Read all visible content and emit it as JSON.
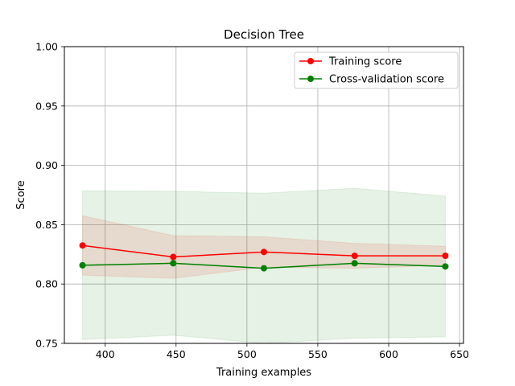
{
  "chart_data": {
    "type": "line",
    "title": "Decision Tree",
    "xlabel": "Training examples",
    "ylabel": "Score",
    "xlim": [
      371.2,
      652.8
    ],
    "ylim": [
      0.75,
      1.0
    ],
    "xticks": [
      400,
      450,
      500,
      550,
      600,
      650
    ],
    "xtick_labels": [
      "400",
      "450",
      "500",
      "550",
      "600",
      "650"
    ],
    "yticks": [
      0.75,
      0.8,
      0.85,
      0.9,
      0.95,
      1.0
    ],
    "ytick_labels": [
      "0.75",
      "0.80",
      "0.85",
      "0.90",
      "0.95",
      "1.00"
    ],
    "grid": true,
    "legend_position": "top-right",
    "x": [
      384,
      448,
      512,
      576,
      640
    ],
    "series": [
      {
        "name": "Training score",
        "color": "#ff0000",
        "marker": "circle",
        "values": [
          0.8325,
          0.8228,
          0.827,
          0.8238,
          0.8238
        ],
        "band_upper": [
          0.8575,
          0.8408,
          0.8398,
          0.8343,
          0.8318
        ],
        "band_lower": [
          0.8075,
          0.8048,
          0.8142,
          0.8133,
          0.8158
        ],
        "band_color": "#ff0000"
      },
      {
        "name": "Cross-validation score",
        "color": "#008000",
        "marker": "circle",
        "values": [
          0.8158,
          0.8175,
          0.8133,
          0.8175,
          0.8148
        ],
        "band_upper": [
          0.8785,
          0.8781,
          0.8765,
          0.8807,
          0.8741
        ],
        "band_lower": [
          0.7531,
          0.7569,
          0.75,
          0.7543,
          0.7555
        ],
        "band_color": "#008000"
      }
    ]
  }
}
